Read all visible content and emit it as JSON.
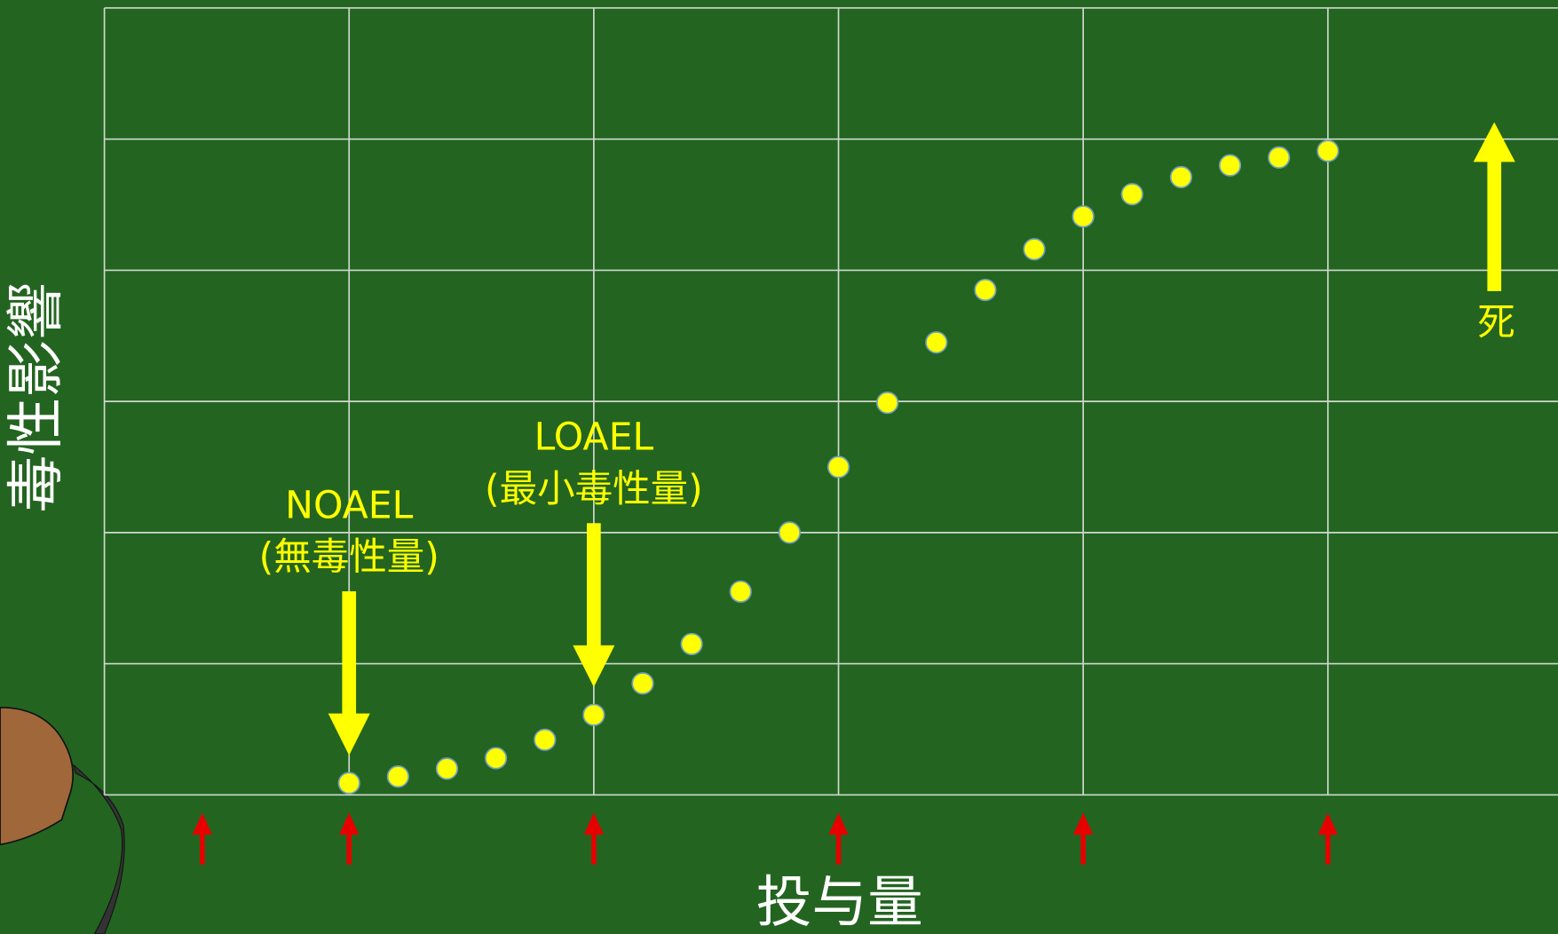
{
  "chart_data": {
    "type": "scatter",
    "x_label": "投与量",
    "y_label": "毒性影響",
    "x": [
      1.0,
      1.2,
      1.4,
      1.6,
      1.8,
      2.0,
      2.2,
      2.4,
      2.6,
      2.8,
      3.0,
      3.2,
      3.4,
      3.6,
      3.8,
      4.0,
      4.2,
      4.4,
      4.6,
      4.8,
      5.0
    ],
    "values": [
      0.09,
      0.14,
      0.2,
      0.28,
      0.42,
      0.61,
      0.85,
      1.15,
      1.55,
      2.0,
      2.5,
      2.99,
      3.45,
      3.85,
      4.16,
      4.41,
      4.58,
      4.71,
      4.8,
      4.86,
      4.91
    ],
    "color": "#ffff00",
    "xlim": [
      0,
      5.94
    ],
    "ylim": [
      0,
      6
    ],
    "xticks": [
      0,
      1,
      2,
      3,
      4,
      5
    ],
    "yticks": [
      0,
      1,
      2,
      3,
      4,
      5,
      6
    ],
    "grid": true,
    "dose_markers": [
      0.4,
      1,
      2,
      3,
      4,
      5
    ],
    "dose_marker_color": "#e60000",
    "annotations": [
      {
        "lines": [
          "NOAEL",
          "(無毒性量)"
        ],
        "x": 1,
        "direction": "down"
      },
      {
        "lines": [
          "LOAEL",
          "(最小毒性量)"
        ],
        "x": 2,
        "direction": "down"
      },
      {
        "lines": [
          "死"
        ],
        "x": 5.68,
        "direction": "up"
      }
    ]
  }
}
